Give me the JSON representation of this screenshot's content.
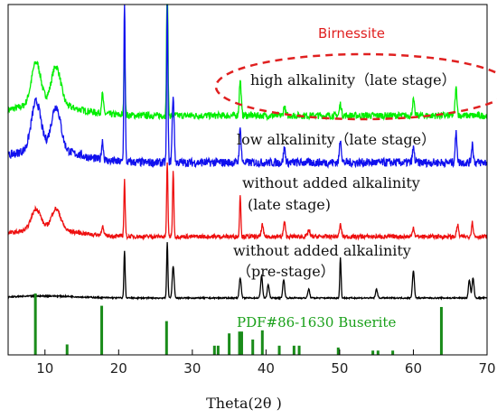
{
  "chart_data": {
    "type": "line",
    "xlabel": "Theta(2θ )",
    "ylabel": "",
    "xlim": [
      5,
      70
    ],
    "x_ticks": [
      10,
      20,
      30,
      40,
      50,
      60,
      70
    ],
    "y_axis": "none (arbitrary intensity, stacked patterns)",
    "grid": false,
    "series": [
      {
        "color": "#00ee00",
        "baseline_offset": 3,
        "peaks": [
          {
            "x": 8.8,
            "h": 0.55
          },
          {
            "x": 11.5,
            "h": 0.5
          },
          {
            "x": 17.8,
            "h": 0.25
          },
          {
            "x": 20.8,
            "h": 0.9
          },
          {
            "x": 26.6,
            "h": 2.2
          },
          {
            "x": 36.5,
            "h": 0.45
          },
          {
            "x": 42.5,
            "h": 0.12
          },
          {
            "x": 50.1,
            "h": 0.15
          },
          {
            "x": 60.0,
            "h": 0.2
          },
          {
            "x": 65.8,
            "h": 0.35
          }
        ]
      },
      {
        "color": "#1010ee",
        "baseline_offset": 2,
        "peaks": [
          {
            "x": 8.8,
            "h": 0.5
          },
          {
            "x": 11.5,
            "h": 0.45
          },
          {
            "x": 17.8,
            "h": 0.2
          },
          {
            "x": 20.8,
            "h": 1.8
          },
          {
            "x": 26.6,
            "h": 1.7
          },
          {
            "x": 27.4,
            "h": 0.7
          },
          {
            "x": 36.5,
            "h": 0.35
          },
          {
            "x": 42.5,
            "h": 0.15
          },
          {
            "x": 50.1,
            "h": 0.25
          },
          {
            "x": 60.0,
            "h": 0.15
          },
          {
            "x": 65.8,
            "h": 0.3
          },
          {
            "x": 68.0,
            "h": 0.2
          }
        ]
      },
      {
        "color": "#ee1010",
        "baseline_offset": 1,
        "peaks": [
          {
            "x": 8.8,
            "h": 0.45
          },
          {
            "x": 11.5,
            "h": 0.45
          },
          {
            "x": 17.8,
            "h": 0.2
          },
          {
            "x": 20.8,
            "h": 1.2
          },
          {
            "x": 26.6,
            "h": 1.6
          },
          {
            "x": 27.4,
            "h": 1.4
          },
          {
            "x": 36.5,
            "h": 0.9
          },
          {
            "x": 39.5,
            "h": 0.25
          },
          {
            "x": 42.5,
            "h": 0.3
          },
          {
            "x": 45.8,
            "h": 0.15
          },
          {
            "x": 50.1,
            "h": 0.25
          },
          {
            "x": 60.0,
            "h": 0.2
          },
          {
            "x": 66.0,
            "h": 0.25
          },
          {
            "x": 68.0,
            "h": 0.3
          }
        ]
      },
      {
        "color": "#000000",
        "baseline_offset": 0,
        "peaks": [
          {
            "x": 20.8,
            "h": 1.05
          },
          {
            "x": 26.6,
            "h": 1.25
          },
          {
            "x": 27.4,
            "h": 0.7
          },
          {
            "x": 36.5,
            "h": 0.45
          },
          {
            "x": 39.4,
            "h": 0.5
          },
          {
            "x": 40.3,
            "h": 0.3
          },
          {
            "x": 42.4,
            "h": 0.4
          },
          {
            "x": 45.8,
            "h": 0.2
          },
          {
            "x": 50.1,
            "h": 0.9
          },
          {
            "x": 55.0,
            "h": 0.2
          },
          {
            "x": 60.0,
            "h": 0.6
          },
          {
            "x": 67.6,
            "h": 0.4
          },
          {
            "x": 68.1,
            "h": 0.45
          }
        ]
      }
    ],
    "reference_pattern": {
      "name": "PDF#86-1630 Buserite",
      "color": "#1a8c1a",
      "lines": [
        {
          "x": 8.7,
          "h": 1.0
        },
        {
          "x": 13.0,
          "h": 0.17
        },
        {
          "x": 17.7,
          "h": 0.8
        },
        {
          "x": 26.5,
          "h": 0.55
        },
        {
          "x": 33.0,
          "h": 0.15
        },
        {
          "x": 33.5,
          "h": 0.15
        },
        {
          "x": 35.0,
          "h": 0.35
        },
        {
          "x": 36.4,
          "h": 0.38
        },
        {
          "x": 36.7,
          "h": 0.38
        },
        {
          "x": 38.2,
          "h": 0.25
        },
        {
          "x": 39.5,
          "h": 0.4
        },
        {
          "x": 41.8,
          "h": 0.15
        },
        {
          "x": 43.8,
          "h": 0.15
        },
        {
          "x": 44.5,
          "h": 0.15
        },
        {
          "x": 49.8,
          "h": 0.12
        },
        {
          "x": 54.5,
          "h": 0.07
        },
        {
          "x": 55.2,
          "h": 0.07
        },
        {
          "x": 57.2,
          "h": 0.07
        },
        {
          "x": 63.8,
          "h": 0.78
        }
      ]
    },
    "annotations": [
      {
        "id": "birnessite",
        "text": "Birnessite",
        "color": "#e02020"
      },
      {
        "id": "high",
        "text": "high alkalinity（late stage）"
      },
      {
        "id": "low",
        "text": "low alkalinity（late stage）"
      },
      {
        "id": "without1",
        "text": "without added alkalinity"
      },
      {
        "id": "without1b",
        "text": "(late stage)"
      },
      {
        "id": "without2",
        "text": "without added alkalinity"
      },
      {
        "id": "without2b",
        "text": "（pre-stage）"
      },
      {
        "id": "pdf",
        "text": "PDF#86-1630 Buserite"
      }
    ]
  }
}
